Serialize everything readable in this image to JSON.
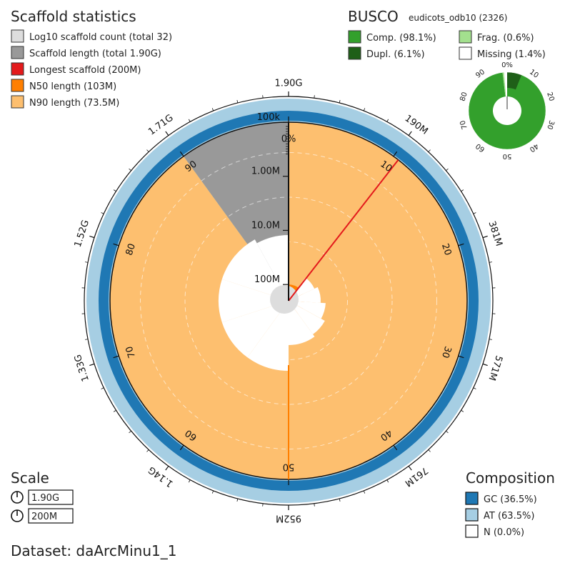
{
  "chart_data": {
    "type": "snail",
    "title": "Scaffold statistics",
    "legend": [
      {
        "label": "Log10 scaffold count (total 32)",
        "color": "#dddddd"
      },
      {
        "label": "Scaffold length (total 1.90G)",
        "color": "#999999"
      },
      {
        "label": "Longest scaffold (200M)",
        "color": "#e31a1c"
      },
      {
        "label": "N50 length (103M)",
        "color": "#ff7f00"
      },
      {
        "label": "N90 length (73.5M)",
        "color": "#fdbf6f"
      }
    ],
    "metrics": {
      "scaffold_count": 32,
      "total_length_g": 1.9,
      "longest_scaffold_m": 200,
      "n50_m": 103,
      "n90_m": 73.5,
      "gc_percent": 36.5,
      "at_percent": 63.5,
      "n_percent": 0.0
    },
    "percent_ticks": [
      "0%",
      "10",
      "20",
      "30",
      "40",
      "50",
      "60",
      "70",
      "80",
      "90"
    ],
    "length_ticks": [
      "1.90G",
      "190M",
      "381M",
      "571M",
      "761M",
      "952M",
      "1.14G",
      "1.33G",
      "1.52G",
      "1.71G"
    ],
    "radial_ticks": [
      "100k",
      "1.00M",
      "10.0M",
      "100M"
    ],
    "busco": {
      "title": "BUSCO",
      "dataset": "eudicots_odb10 (2326)",
      "legend": [
        {
          "label": "Comp. (98.1%)",
          "color": "#33a02c"
        },
        {
          "label": "Frag. (0.6%)",
          "color": "#a3e08e"
        },
        {
          "label": "Dupl. (6.1%)",
          "color": "#1f5f18"
        },
        {
          "label": "Missing (1.4%)",
          "color": "#ffffff"
        }
      ],
      "complete": 98.1,
      "duplicated": 6.1,
      "fragmented": 0.6,
      "missing": 1.4,
      "ticks": [
        "0%",
        "10",
        "20",
        "30",
        "40",
        "50",
        "60",
        "70",
        "80",
        "90"
      ]
    },
    "scale": {
      "title": "Scale",
      "values": [
        "1.90G",
        "200M"
      ]
    },
    "composition": {
      "title": "Composition",
      "legend": [
        {
          "label": "GC (36.5%)",
          "color": "#1f78b4"
        },
        {
          "label": "AT (63.5%)",
          "color": "#a6cee3"
        },
        {
          "label": "N (0.0%)",
          "color": "#ffffff"
        }
      ]
    },
    "dataset": "Dataset: daArcMinu1_1"
  }
}
